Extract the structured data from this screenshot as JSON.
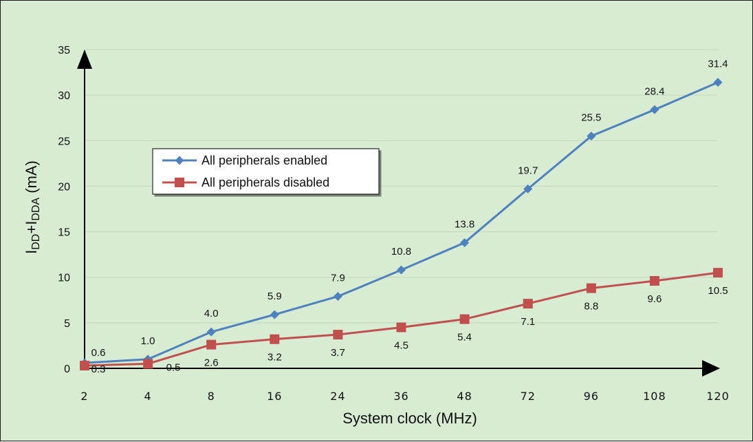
{
  "chart_data": {
    "type": "line",
    "categories": [
      "2",
      "4",
      "8",
      "16",
      "24",
      "36",
      "48",
      "72",
      "96",
      "108",
      "120"
    ],
    "series": [
      {
        "name": "All peripherals enabled",
        "color": "#4f81bd",
        "marker": "diamond",
        "values": [
          0.6,
          1.0,
          4.0,
          5.9,
          7.9,
          10.8,
          13.8,
          19.7,
          25.5,
          28.4,
          31.4
        ],
        "labels": [
          "0.6",
          "1.0",
          "4.0",
          "5.9",
          "7.9",
          "10.8",
          "13.8",
          "19.7",
          "25.5",
          "28.4",
          "31.4"
        ]
      },
      {
        "name": "All peripherals disabled",
        "color": "#c0504d",
        "marker": "square",
        "values": [
          0.3,
          0.5,
          2.6,
          3.2,
          3.7,
          4.5,
          5.4,
          7.1,
          8.8,
          9.6,
          10.5
        ],
        "labels": [
          "0.3",
          "0.5",
          "2.6",
          "3.2",
          "3.7",
          "4.5",
          "5.4",
          "7.1",
          "8.8",
          "9.6",
          "10.5"
        ]
      }
    ],
    "xlabel": "System clock (MHz)",
    "ylabel": {
      "parts": [
        {
          "text": "I",
          "sub": false
        },
        {
          "text": "DD",
          "sub": true
        },
        {
          "text": "+I",
          "sub": false
        },
        {
          "text": "DDA",
          "sub": true
        },
        {
          "text": " (mA)",
          "sub": false
        }
      ]
    },
    "ylim": [
      0,
      35
    ],
    "yticks": [
      "0",
      "5",
      "10",
      "15",
      "20",
      "25",
      "30",
      "35"
    ],
    "grid": true,
    "legend_position": "upper-left"
  }
}
